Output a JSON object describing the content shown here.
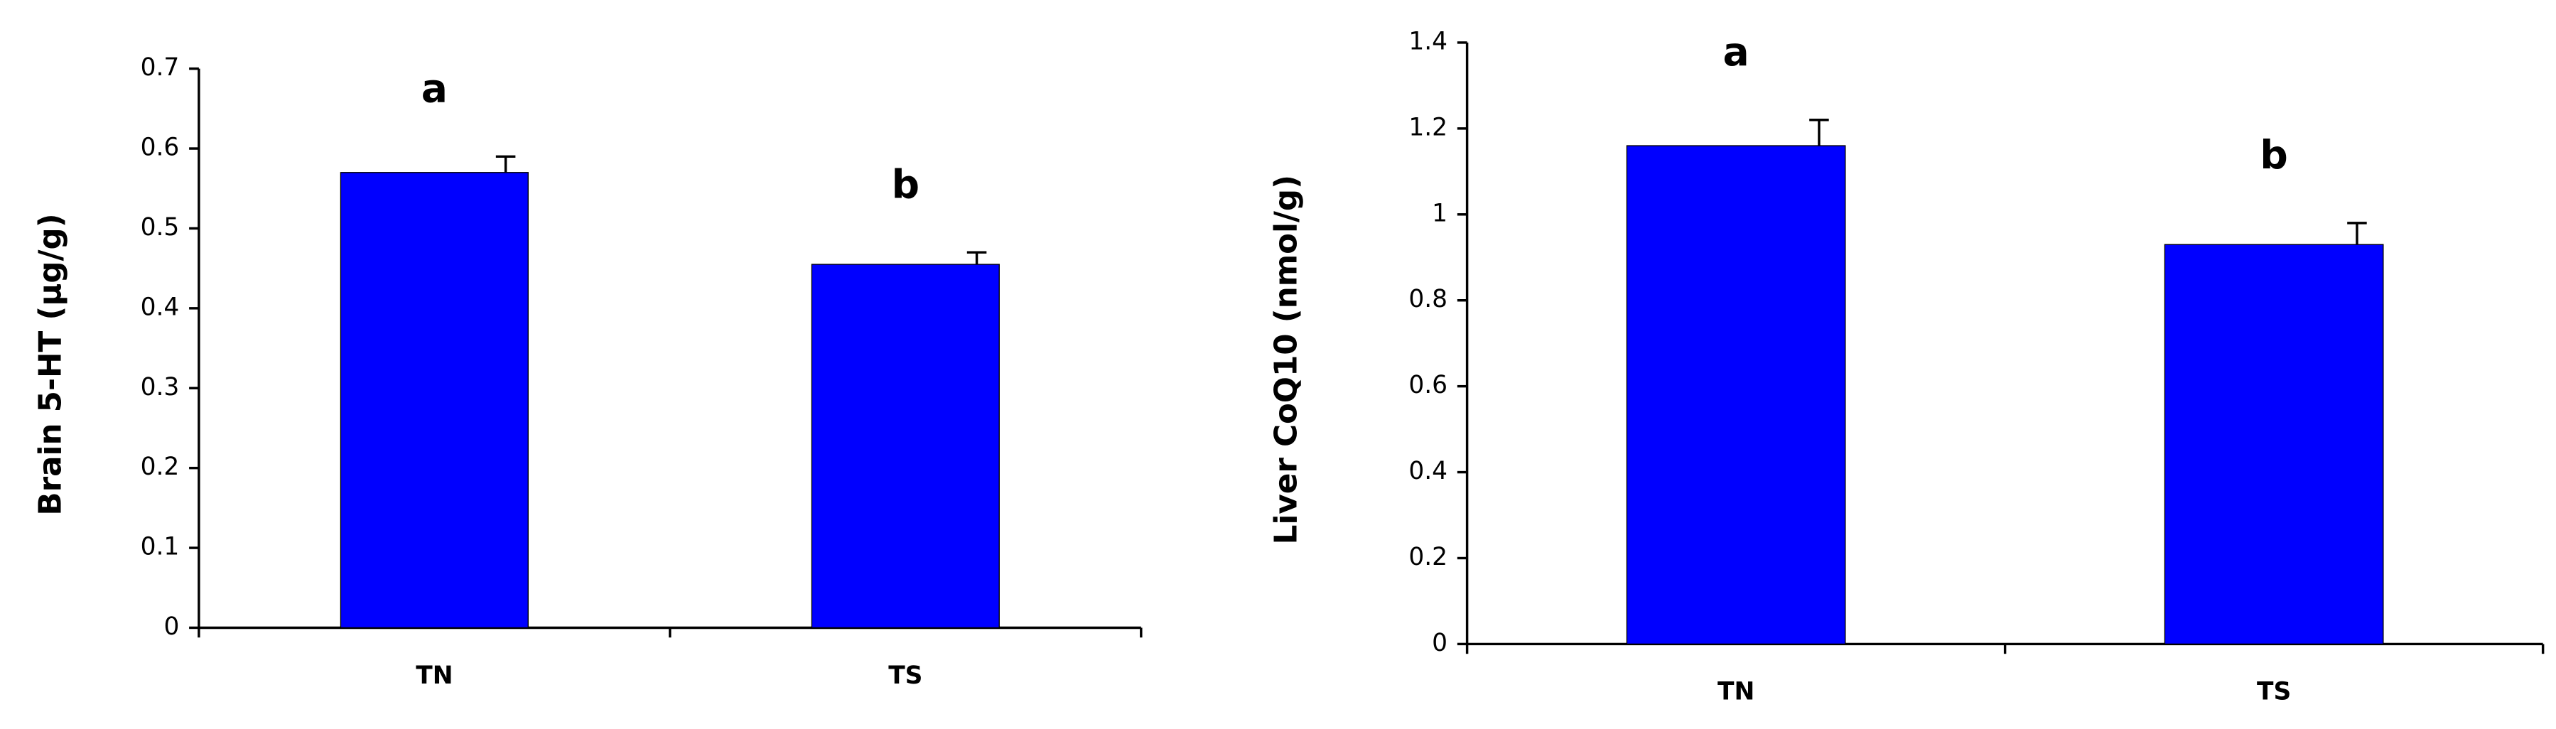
{
  "chart_data": [
    {
      "type": "bar",
      "y_label": "Brain 5-HT (µg/g)",
      "categories": [
        "TN",
        "TS"
      ],
      "values": [
        0.57,
        0.455
      ],
      "errors": [
        0.02,
        0.015
      ],
      "letters": [
        "a",
        "b"
      ],
      "color": "#0000ff",
      "ylim": [
        0,
        0.7
      ],
      "yticks": [
        0,
        0.1,
        0.2,
        0.3,
        0.4,
        0.5,
        0.6,
        0.7
      ]
    },
    {
      "type": "bar",
      "y_label": "Liver CoQ10 (nmol/g)",
      "categories": [
        "TN",
        "TS"
      ],
      "values": [
        1.16,
        0.93
      ],
      "errors": [
        0.06,
        0.05
      ],
      "letters": [
        "a",
        "b"
      ],
      "color": "#0000ff",
      "ylim": [
        0,
        1.4
      ],
      "yticks": [
        0,
        0.2,
        0.4,
        0.6,
        0.8,
        1,
        1.2,
        1.4
      ]
    }
  ]
}
